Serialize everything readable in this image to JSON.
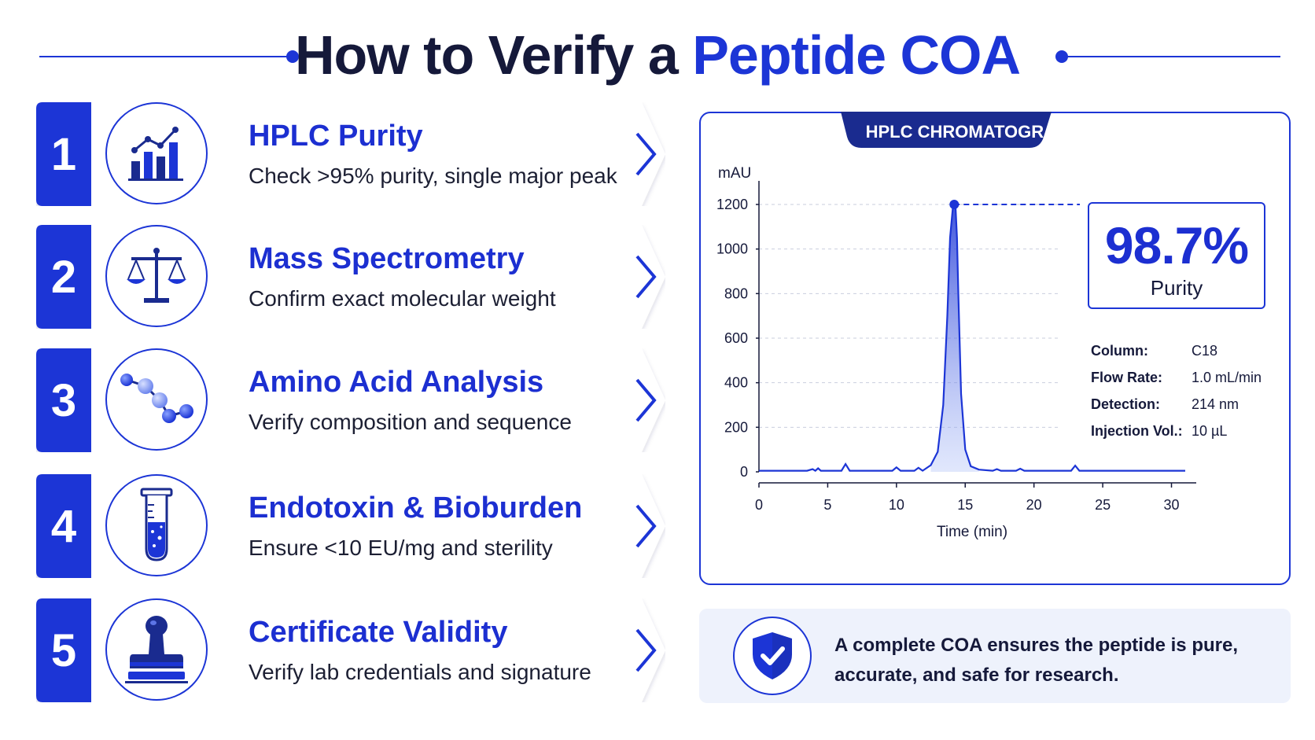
{
  "header": {
    "title_part1": "How to Verify a",
    "title_part2": "Peptide COA",
    "accent_color": "#1c35d6"
  },
  "steps": [
    {
      "number": "1",
      "title": "HPLC Purity",
      "description": "Check >95% purity, single major peak",
      "icon": "bar-chart-icon"
    },
    {
      "number": "2",
      "title": "Mass Spectrometry",
      "description": "Confirm exact molecular weight",
      "icon": "balance-scale-icon"
    },
    {
      "number": "3",
      "title": "Amino Acid Analysis",
      "description": "Verify composition and sequence",
      "icon": "molecule-chain-icon"
    },
    {
      "number": "4",
      "title": "Endotoxin & Bioburden",
      "description": "Ensure <10 EU/mg and sterility",
      "icon": "test-tube-icon"
    },
    {
      "number": "5",
      "title": "Certificate Validity",
      "description": "Verify lab credentials and signature",
      "icon": "stamp-icon"
    }
  ],
  "chart_panel": {
    "header": "HPLC CHROMATOGRAM",
    "purity_value": "98.7%",
    "purity_label": "Purity",
    "params": [
      {
        "key": "Column:",
        "value": "C18"
      },
      {
        "key": "Flow Rate:",
        "value": "1.0 mL/min"
      },
      {
        "key": "Detection:",
        "value": "214 nm"
      },
      {
        "key": "Injection Vol.:",
        "value": "10 µL"
      }
    ]
  },
  "chart_data": {
    "type": "line",
    "title": "HPLC CHROMATOGRAM",
    "xlabel": "Time (min)",
    "ylabel": "mAU",
    "xlim": [
      0,
      31
    ],
    "ylim": [
      0,
      1200
    ],
    "x_ticks": [
      0,
      5,
      10,
      15,
      20,
      25,
      30
    ],
    "y_ticks": [
      0,
      200,
      400,
      600,
      800,
      1000,
      1200
    ],
    "grid": true,
    "series": [
      {
        "x": [
          0,
          3.5,
          3.9,
          4.1,
          4.3,
          4.5,
          4.7,
          5.5,
          6.0,
          6.3,
          6.6,
          7.5,
          9.0,
          9.7,
          10.0,
          10.3,
          11.0,
          11.3,
          11.6,
          11.9,
          12.5,
          13.0,
          13.4,
          13.7,
          13.9,
          14.1,
          14.2,
          14.3,
          14.4,
          14.5,
          14.7,
          15.0,
          15.4,
          16.0,
          17.0,
          17.3,
          17.6,
          18.0,
          18.7,
          19.0,
          19.3,
          22.0,
          22.7,
          23.0,
          23.3,
          24.0,
          31.0
        ],
        "y": [
          5,
          5,
          12,
          5,
          16,
          5,
          5,
          5,
          5,
          35,
          5,
          5,
          5,
          5,
          20,
          5,
          5,
          5,
          18,
          5,
          30,
          90,
          300,
          700,
          1050,
          1185,
          1200,
          1185,
          1050,
          800,
          350,
          100,
          25,
          10,
          5,
          12,
          5,
          5,
          5,
          14,
          5,
          5,
          5,
          28,
          5,
          5,
          5
        ]
      }
    ],
    "annotations": [
      {
        "type": "peak-marker",
        "x": 14.2,
        "y": 1200,
        "label": "98.7% Purity"
      }
    ]
  },
  "summary": {
    "text": "A complete COA ensures the peptide is pure, accurate, and safe for research.",
    "icon": "shield-check-icon"
  }
}
